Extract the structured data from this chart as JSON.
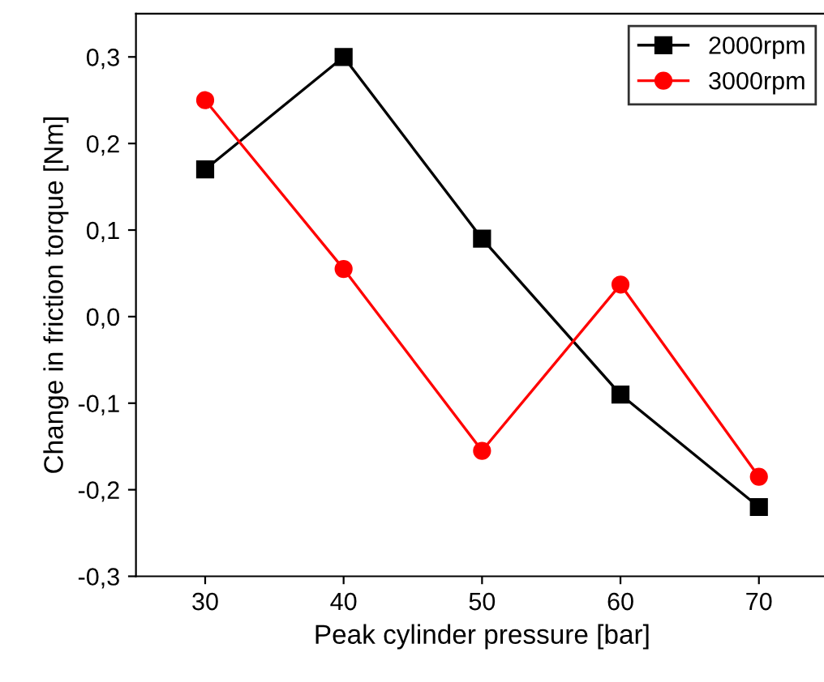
{
  "chart_data": {
    "type": "line",
    "xlabel": "Peak cylinder pressure [bar]",
    "ylabel": "Change in friction torque [Nm]",
    "x": [
      30,
      40,
      50,
      60,
      70
    ],
    "series": [
      {
        "name": "2000rpm",
        "color": "#000000",
        "marker": "square",
        "values": [
          0.17,
          0.3,
          0.09,
          -0.09,
          -0.22
        ]
      },
      {
        "name": "3000rpm",
        "color": "#ff0000",
        "marker": "circle",
        "values": [
          0.25,
          0.055,
          -0.155,
          0.037,
          -0.185
        ]
      }
    ],
    "xlim": [
      25,
      75
    ],
    "xticks": [
      30,
      40,
      50,
      60,
      70
    ],
    "ylim": [
      -0.3,
      0.35
    ],
    "yticks": [
      {
        "value": -0.3,
        "label": "-0,3"
      },
      {
        "value": -0.2,
        "label": "-0,2"
      },
      {
        "value": -0.1,
        "label": "-0,1"
      },
      {
        "value": 0.0,
        "label": "0,0"
      },
      {
        "value": 0.1,
        "label": "0,1"
      },
      {
        "value": 0.2,
        "label": "0,2"
      },
      {
        "value": 0.3,
        "label": "0,3"
      }
    ],
    "legend": "top right",
    "grid": false,
    "line_style": "solid"
  }
}
